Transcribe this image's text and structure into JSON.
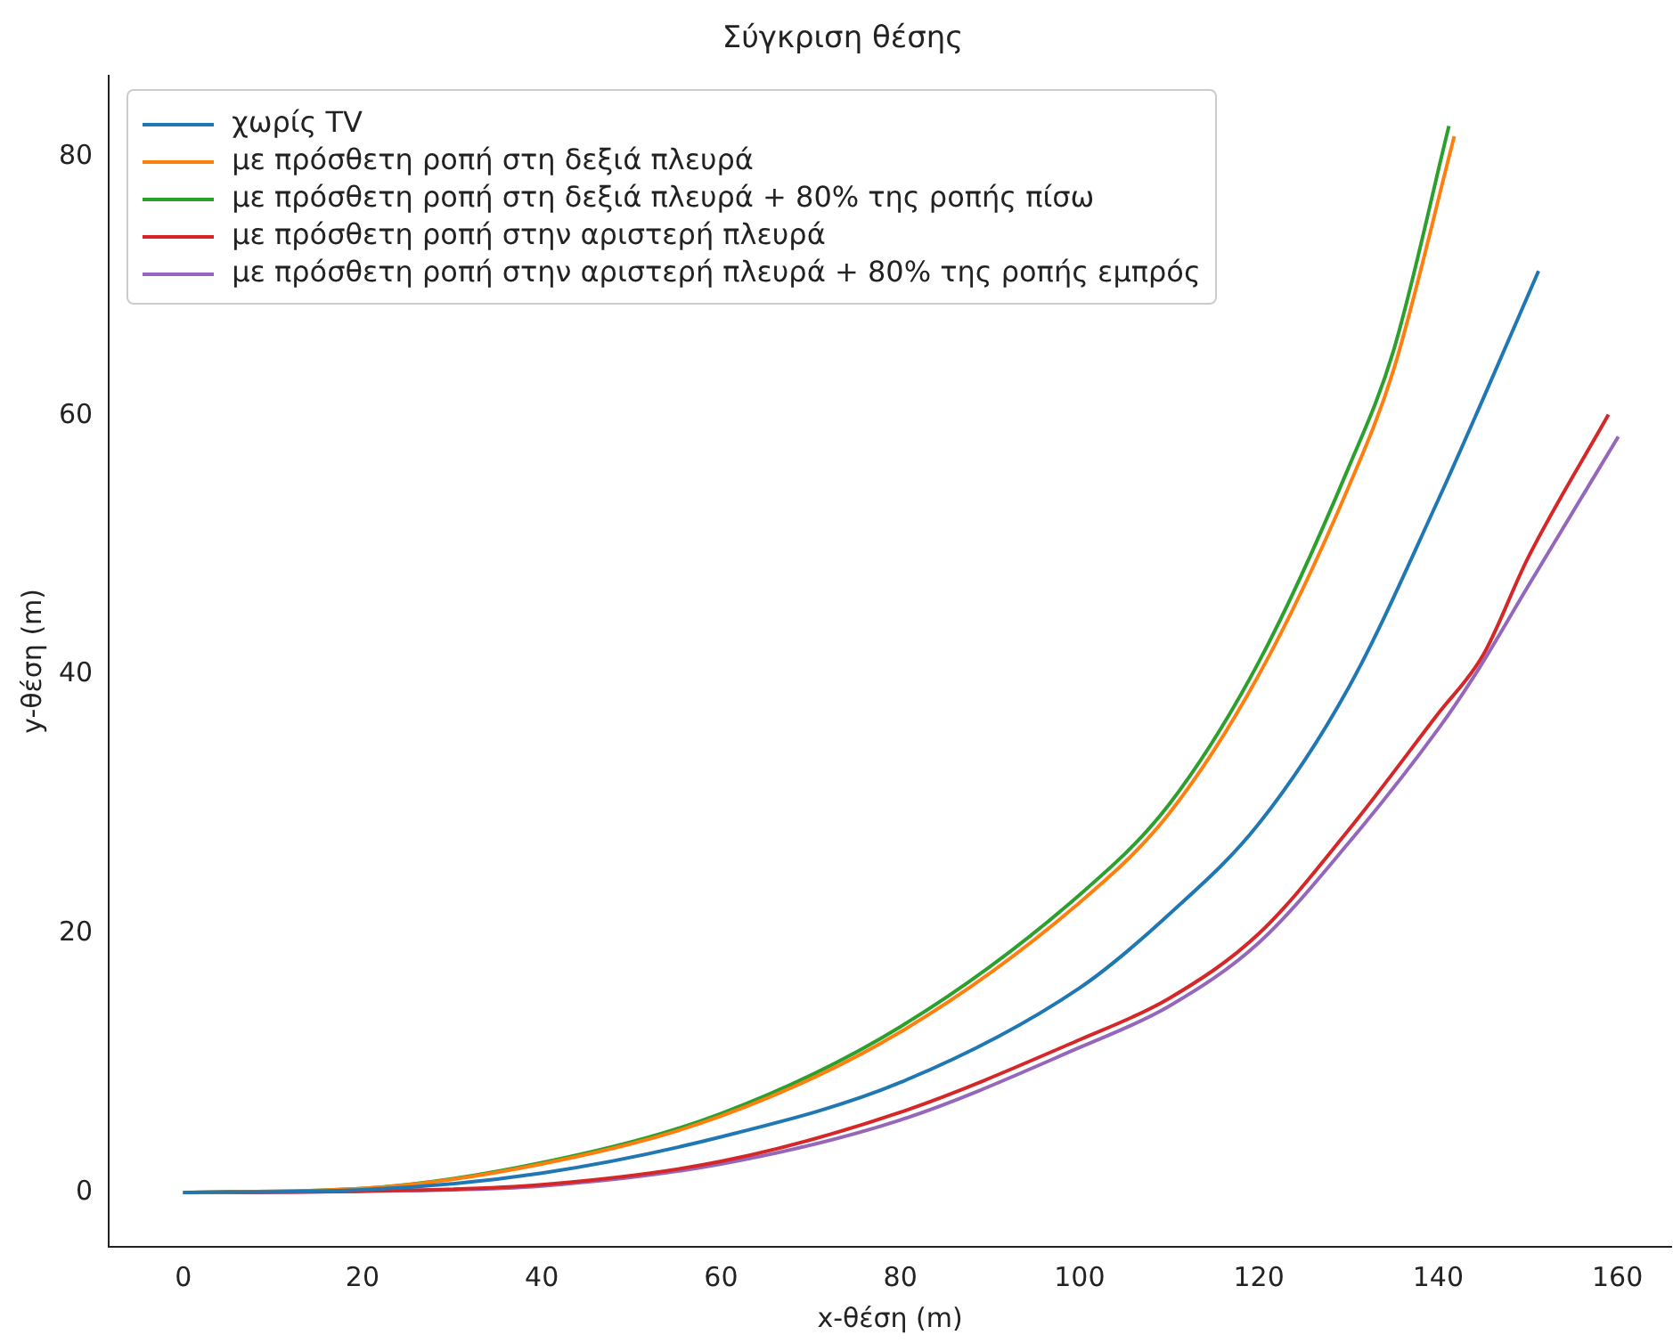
{
  "chart_data": {
    "type": "line",
    "title": "Σύγκριση θέσης",
    "xlabel": "x-θέση (m)",
    "ylabel": "y-θέση (m)",
    "xlim": [
      -8.3,
      166
    ],
    "xticks": [
      0,
      20,
      40,
      60,
      80,
      100,
      120,
      140,
      160
    ],
    "ylim": [
      -4.2,
      86.3
    ],
    "yticks": [
      0,
      20,
      40,
      60,
      80
    ],
    "grid": false,
    "legend": "top left",
    "marker": "none",
    "line_style": "solid",
    "series": [
      {
        "name": "χωρίς TV",
        "color": "#1f77b4",
        "x": [
          0,
          20,
          40,
          60,
          80,
          100,
          110,
          120,
          130,
          140,
          145,
          151.2
        ],
        "values": [
          0,
          0.2,
          1.5,
          4.3,
          8.5,
          15.8,
          21.5,
          28.5,
          39,
          53.5,
          61.3,
          71.2
        ]
      },
      {
        "name": "με πρόσθετη ροπή στη δεξιά πλευρά",
        "color": "#ff7f0e",
        "x": [
          0,
          20,
          40,
          60,
          80,
          100,
          110,
          120,
          130,
          135,
          141.8
        ],
        "values": [
          0,
          0.3,
          2.2,
          5.9,
          12.4,
          22.4,
          29.3,
          40,
          54.5,
          63.5,
          81.6
        ]
      },
      {
        "name": "με πρόσθετη ροπή στη δεξιά πλευρά + 80% της ροπής πίσω",
        "color": "#2ca02c",
        "x": [
          0,
          20,
          40,
          60,
          80,
          100,
          110,
          120,
          130,
          135,
          141.2
        ],
        "values": [
          0,
          0.3,
          2.3,
          6.1,
          12.8,
          23,
          30,
          41,
          56,
          65,
          82.4
        ]
      },
      {
        "name": "με πρόσθετη ροπή στην αριστερή πλευρά",
        "color": "#d62728",
        "x": [
          0,
          20,
          40,
          60,
          80,
          100,
          110,
          120,
          130,
          140,
          145,
          150,
          159
        ],
        "values": [
          0,
          0.1,
          0.6,
          2.4,
          6.2,
          11.8,
          15,
          20,
          28,
          37,
          41.5,
          49,
          60.1
        ]
      },
      {
        "name": "με πρόσθετη ροπή στην αριστερή πλευρά + 80% της ροπής εμπρός",
        "color": "#9467bd",
        "x": [
          0,
          20,
          40,
          60,
          80,
          100,
          110,
          120,
          130,
          140,
          144.3,
          150,
          160.1
        ],
        "values": [
          0,
          0.1,
          0.5,
          2.2,
          5.6,
          11.2,
          14.4,
          19.3,
          27,
          35.8,
          40.2,
          46.8,
          58.4
        ]
      }
    ]
  }
}
